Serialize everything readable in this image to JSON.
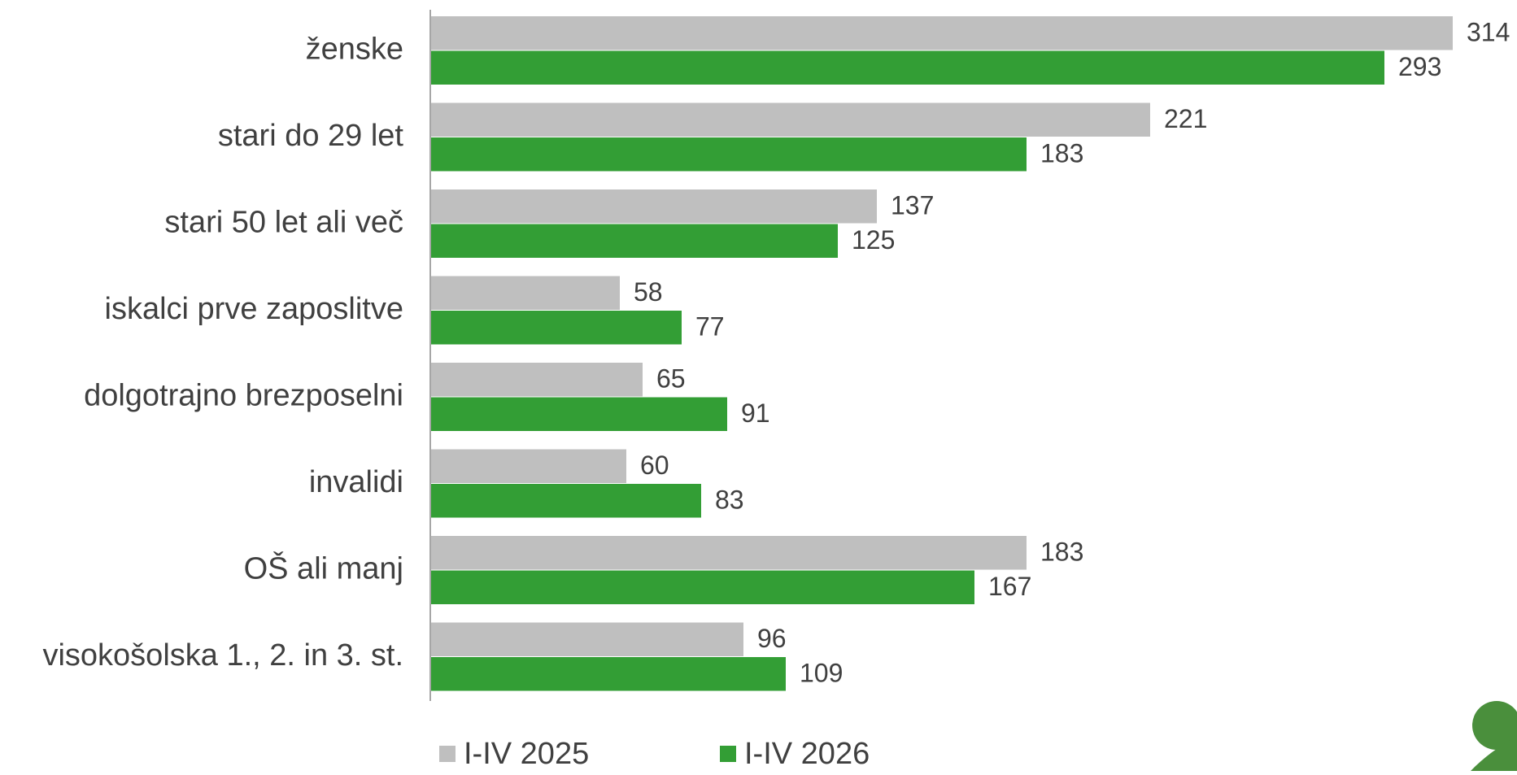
{
  "chart_data": {
    "type": "bar",
    "orientation": "horizontal",
    "categories": [
      "ženske",
      "stari do 29 let",
      "stari 50 let ali več",
      "iskalci prve zaposlitve",
      "dolgotrajno brezposelni",
      "invalidi",
      "OŠ ali manj",
      "visokošolska 1., 2. in 3. st."
    ],
    "series": [
      {
        "name": "I-IV 2025",
        "color": "#bfbfbf",
        "values": [
          314,
          221,
          137,
          58,
          65,
          60,
          183,
          96
        ]
      },
      {
        "name": "I-IV 2026",
        "color": "#339e35",
        "values": [
          293,
          183,
          125,
          77,
          91,
          83,
          167,
          109
        ]
      }
    ],
    "legend": "bottom"
  }
}
